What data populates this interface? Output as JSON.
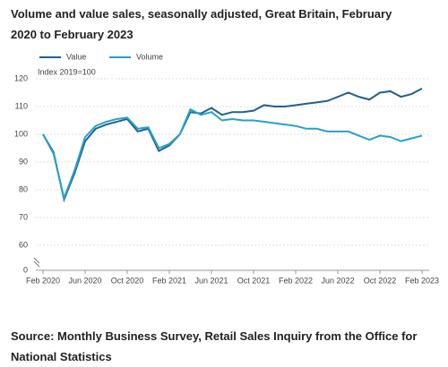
{
  "chart_data": {
    "type": "line",
    "title": "Volume and value sales, seasonally adjusted, Great Britain, February 2020 to February 2023",
    "y_label": "Index 2019=100",
    "source": "Source: Monthly Business Survey, Retail Sales Inquiry from the Office for National Statistics",
    "categories": [
      "Feb 2020",
      null,
      null,
      null,
      "Jun 2020",
      null,
      null,
      null,
      "Oct 2020",
      null,
      null,
      null,
      "Feb 2021",
      null,
      null,
      null,
      "Jun 2021",
      null,
      null,
      null,
      "Oct 2021",
      null,
      null,
      null,
      "Feb 2022",
      null,
      null,
      null,
      "Jun 2022",
      null,
      null,
      null,
      "Oct 2022",
      null,
      null,
      null,
      "Feb 2023"
    ],
    "series": [
      {
        "name": "Value",
        "color": "#206095",
        "values": [
          100,
          93.5,
          76.5,
          86,
          97.5,
          102,
          103.5,
          104.5,
          105.5,
          101,
          102,
          94,
          96,
          100,
          108,
          107.5,
          109.5,
          107,
          108,
          108,
          108.5,
          110.5,
          110,
          110,
          110.5,
          111,
          111.5,
          112,
          113.5,
          115,
          113.5,
          112.5,
          115,
          115.5,
          113.5,
          114.5,
          116.5
        ]
      },
      {
        "name": "Volume",
        "color": "#27a0cc",
        "values": [
          100,
          93,
          77,
          87,
          99,
          103,
          104.5,
          105.5,
          106,
          102,
          102.5,
          95,
          96.5,
          100,
          109,
          107,
          108,
          105,
          105.5,
          105,
          105,
          104.5,
          104,
          103.5,
          103,
          102,
          102,
          101,
          101,
          101,
          99.5,
          98,
          99.5,
          99,
          97.5,
          98.5,
          99.5
        ]
      }
    ],
    "ylim": [
      0,
      120
    ],
    "yticks": [
      0,
      60,
      70,
      80,
      90,
      100,
      110,
      120
    ],
    "axis_break": [
      0,
      60
    ],
    "grid": true,
    "legend": "top"
  }
}
